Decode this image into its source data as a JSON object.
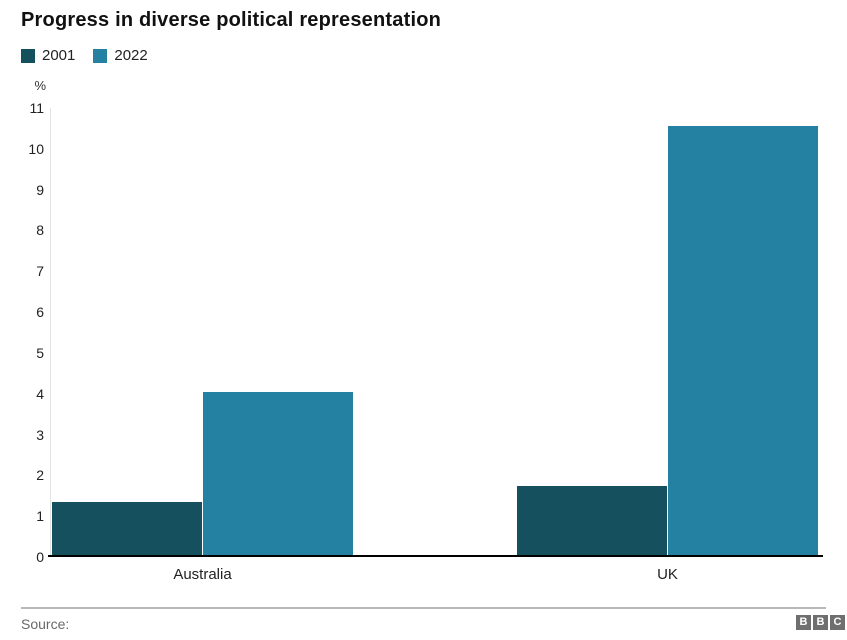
{
  "title": "Progress in diverse political representation",
  "footer": {
    "source_label": "Source:",
    "logo_name": "bbc-logo",
    "logo_letters": [
      "B",
      "B",
      "C"
    ]
  },
  "colors": {
    "series_2001": "#15505f",
    "series_2022": "#2581a1",
    "axis_line": "#000000",
    "footer_rule": "#b8b8b8",
    "logo_gray": "#6f6f6f"
  },
  "chart_data": {
    "type": "bar",
    "title": "Progress in diverse political representation",
    "categories": [
      "Australia",
      "UK"
    ],
    "series": [
      {
        "name": "2001",
        "color": "#15505f",
        "values": [
          1.3,
          1.7
        ]
      },
      {
        "name": "2022",
        "color": "#2581a1",
        "values": [
          4.0,
          10.5
        ]
      }
    ],
    "xlabel": "",
    "ylabel": "%",
    "ylim": [
      0,
      11
    ],
    "yticks": [
      0,
      1,
      2,
      3,
      4,
      5,
      6,
      7,
      8,
      9,
      10,
      11
    ],
    "grid": false,
    "legend_position": "top-left"
  }
}
